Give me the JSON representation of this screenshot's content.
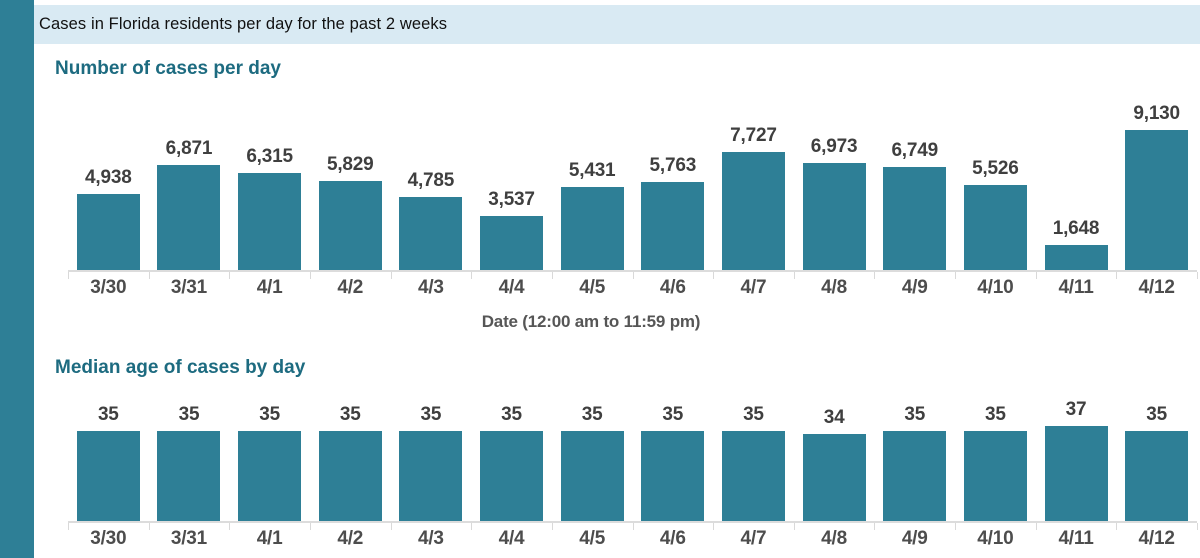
{
  "page": {
    "header": "Cases in Florida residents per day for the past 2 weeks"
  },
  "colors": {
    "accent_teal": "#2e7f96",
    "header_band_bg": "#d9eaf3",
    "section_title_teal": "#1d6b80",
    "value_label_gray": "#3f3f3f",
    "axis_gray": "#dcdcdc"
  },
  "chart_data": [
    {
      "type": "bar",
      "title": "Number of cases per day",
      "categories": [
        "3/30",
        "3/31",
        "4/1",
        "4/2",
        "4/3",
        "4/4",
        "4/5",
        "4/6",
        "4/7",
        "4/8",
        "4/9",
        "4/10",
        "4/11",
        "4/12"
      ],
      "values": [
        4938,
        6871,
        6315,
        5829,
        4785,
        3537,
        5431,
        5763,
        7727,
        6973,
        6749,
        5526,
        1648,
        9130
      ],
      "labels": [
        "4,938",
        "6,871",
        "6,315",
        "5,829",
        "4,785",
        "3,537",
        "5,431",
        "5,763",
        "7,727",
        "6,973",
        "6,749",
        "5,526",
        "1,648",
        "9,130"
      ],
      "xlabel": "Date (12:00 am to 11:59 pm)",
      "ylabel": "",
      "ylim": [
        0,
        9130
      ],
      "grid": false,
      "legend": "none",
      "value_labels": "above-bars"
    },
    {
      "type": "bar",
      "title": "Median age of cases by day",
      "categories": [
        "3/30",
        "3/31",
        "4/1",
        "4/2",
        "4/3",
        "4/4",
        "4/5",
        "4/6",
        "4/7",
        "4/8",
        "4/9",
        "4/10",
        "4/11",
        "4/12"
      ],
      "values": [
        35,
        35,
        35,
        35,
        35,
        35,
        35,
        35,
        35,
        34,
        35,
        35,
        37,
        35
      ],
      "labels": [
        "35",
        "35",
        "35",
        "35",
        "35",
        "35",
        "35",
        "35",
        "35",
        "34",
        "35",
        "35",
        "37",
        "35"
      ],
      "xlabel": "",
      "ylabel": "",
      "ylim": [
        0,
        37
      ],
      "grid": false,
      "legend": "none",
      "value_labels": "above-bars"
    }
  ]
}
